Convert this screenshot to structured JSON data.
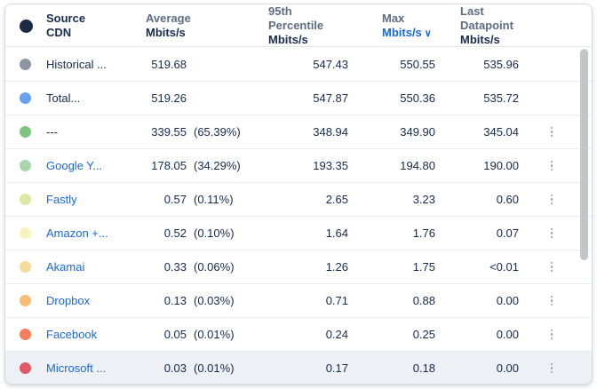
{
  "header": {
    "swatch_color": "#1c2b45",
    "source": {
      "line1": "Source",
      "line2": "CDN"
    },
    "average": {
      "line1": "Average",
      "line2": "Mbits/s"
    },
    "p95": {
      "line1": "95th Percentile",
      "line2": "Mbits/s"
    },
    "max": {
      "line1": "Max",
      "line2": "Mbits/s",
      "sorted": true
    },
    "last": {
      "line1": "Last Datapoint",
      "line2": "Mbits/s"
    }
  },
  "icons": {
    "sort_chevron": "∨",
    "kebab_menu": "vertical-three-dots"
  },
  "colors": {
    "link": "#1868db",
    "text_dark": "#172b4d",
    "text_gray": "#5e6c84",
    "row_highlight": "#edf0f5",
    "scrollbar": "#c2c6cc"
  },
  "rows": [
    {
      "name": "Historical ...",
      "link": false,
      "color": "#8b96a5",
      "avg": "519.68",
      "pct": "",
      "p95": "547.43",
      "max": "550.55",
      "last": "535.96",
      "menu": false,
      "highlight": false
    },
    {
      "name": "Total...",
      "link": false,
      "color": "#69a1f1",
      "avg": "519.26",
      "pct": "",
      "p95": "547.87",
      "max": "550.36",
      "last": "535.72",
      "menu": false,
      "highlight": false
    },
    {
      "name": "---",
      "link": false,
      "color": "#7cc77e",
      "avg": "339.55",
      "pct": "(65.39%)",
      "p95": "348.94",
      "max": "349.90",
      "last": "345.04",
      "menu": true,
      "highlight": false
    },
    {
      "name": "Google Y...",
      "link": true,
      "color": "#a9d7aa",
      "avg": "178.05",
      "pct": "(34.29%)",
      "p95": "193.35",
      "max": "194.80",
      "last": "190.00",
      "menu": true,
      "highlight": false
    },
    {
      "name": "Fastly",
      "link": true,
      "color": "#dde8a1",
      "avg": "0.57",
      "pct": "(0.11%)",
      "p95": "2.65",
      "max": "3.23",
      "last": "0.60",
      "menu": true,
      "highlight": false
    },
    {
      "name": "Amazon +...",
      "link": true,
      "color": "#f7f3bd",
      "avg": "0.52",
      "pct": "(0.10%)",
      "p95": "1.64",
      "max": "1.76",
      "last": "0.07",
      "menu": true,
      "highlight": false
    },
    {
      "name": "Akamai",
      "link": true,
      "color": "#f5dc9b",
      "avg": "0.33",
      "pct": "(0.06%)",
      "p95": "1.26",
      "max": "1.75",
      "last": "<0.01",
      "menu": true,
      "highlight": false
    },
    {
      "name": "Dropbox",
      "link": true,
      "color": "#f7bd78",
      "avg": "0.13",
      "pct": "(0.03%)",
      "p95": "0.71",
      "max": "0.88",
      "last": "0.00",
      "menu": true,
      "highlight": false
    },
    {
      "name": "Facebook",
      "link": true,
      "color": "#f57d5b",
      "avg": "0.05",
      "pct": "(0.01%)",
      "p95": "0.24",
      "max": "0.25",
      "last": "0.00",
      "menu": true,
      "highlight": false
    },
    {
      "name": "Microsoft ...",
      "link": true,
      "color": "#e15864",
      "avg": "0.03",
      "pct": "(0.01%)",
      "p95": "0.17",
      "max": "0.18",
      "last": "0.00",
      "menu": true,
      "highlight": true
    }
  ]
}
